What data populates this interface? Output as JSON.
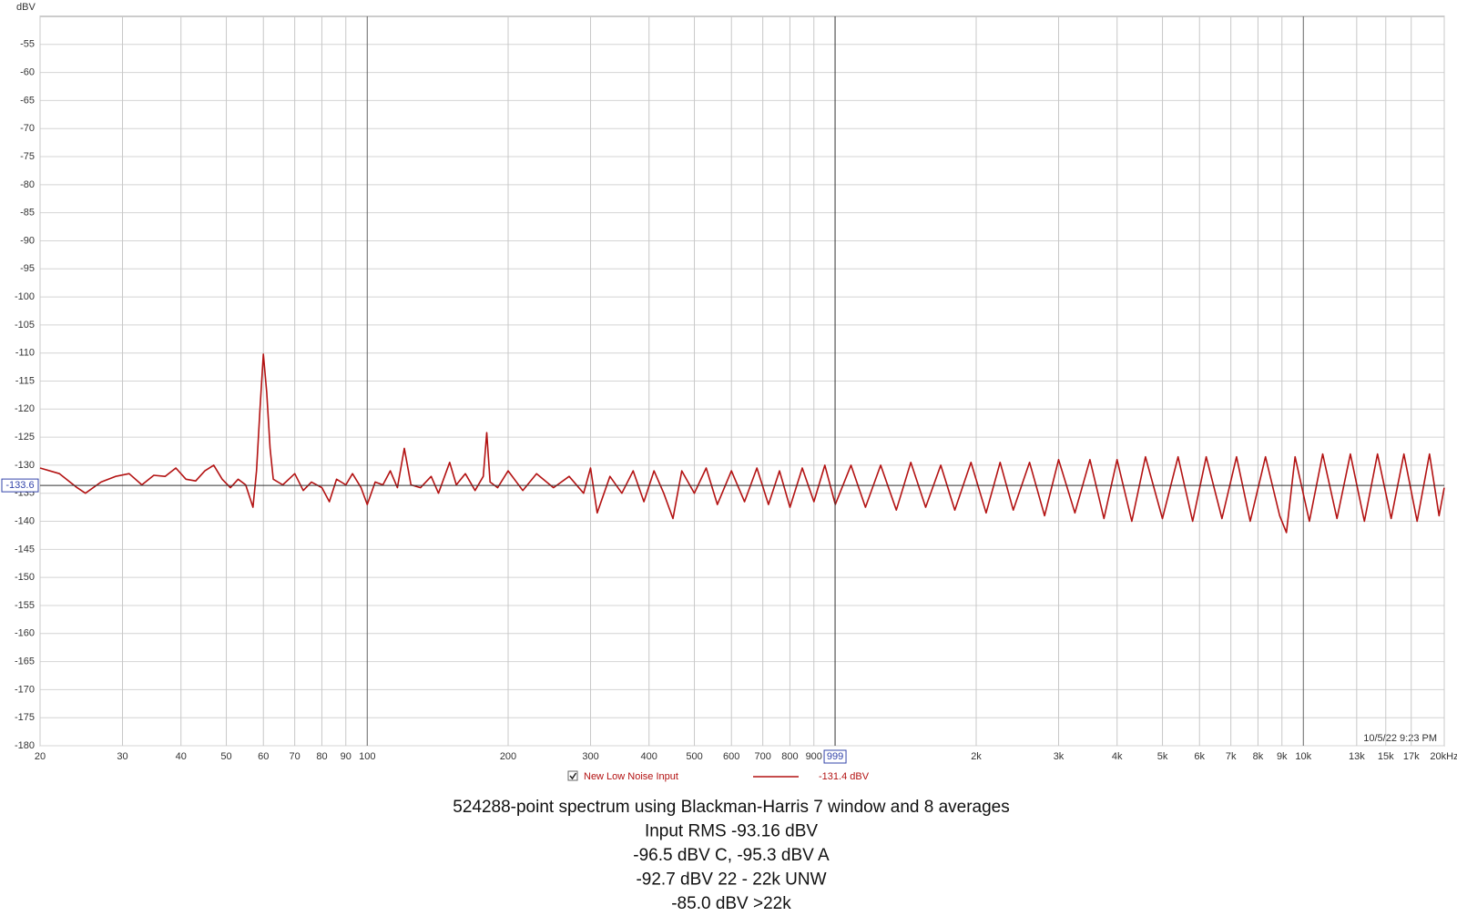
{
  "chart_data": {
    "type": "line",
    "y_label": "dBV",
    "xlim": [
      20,
      20000
    ],
    "ylim": [
      -180,
      -50
    ],
    "log_x": true,
    "grid": true,
    "yticks": [
      -55,
      -60,
      -65,
      -70,
      -75,
      -80,
      -85,
      -90,
      -95,
      -100,
      -105,
      -110,
      -115,
      -120,
      -125,
      -130,
      -135,
      -140,
      -145,
      -150,
      -155,
      -160,
      -165,
      -170,
      -175,
      -180
    ],
    "xticks": [
      20,
      30,
      40,
      50,
      60,
      70,
      80,
      90,
      100,
      200,
      300,
      400,
      500,
      600,
      700,
      800,
      900,
      {
        "value": 2000,
        "label": "2k"
      },
      {
        "value": 3000,
        "label": "3k"
      },
      {
        "value": 4000,
        "label": "4k"
      },
      {
        "value": 5000,
        "label": "5k"
      },
      {
        "value": 6000,
        "label": "6k"
      },
      {
        "value": 7000,
        "label": "7k"
      },
      {
        "value": 8000,
        "label": "8k"
      },
      {
        "value": 9000,
        "label": "9k"
      },
      {
        "value": 10000,
        "label": "10k"
      },
      {
        "value": 13000,
        "label": "13k"
      },
      {
        "value": 15000,
        "label": "15k"
      },
      {
        "value": 17000,
        "label": "17k"
      },
      {
        "value": 20000,
        "label": "20kHz"
      }
    ],
    "cursor": {
      "x": 999,
      "y": -133.6
    },
    "timestamp": "10/5/22 9:23 PM",
    "series": [
      {
        "name": "New Low Noise Input",
        "color": "#b31212",
        "legend_value": "-131.4 dBV",
        "x": [
          20,
          22,
          24,
          25,
          27,
          29,
          31,
          33,
          35,
          37,
          39,
          41,
          43,
          45,
          47,
          49,
          51,
          53,
          55,
          57,
          58,
          59,
          60,
          61,
          62,
          63,
          66,
          70,
          73,
          76,
          80,
          83,
          86,
          90,
          93,
          97,
          100,
          104,
          108,
          112,
          116,
          120,
          124,
          130,
          137,
          142,
          150,
          155,
          162,
          170,
          177,
          180,
          183,
          190,
          200,
          215,
          230,
          250,
          270,
          290,
          300,
          310,
          330,
          350,
          370,
          390,
          410,
          430,
          450,
          470,
          500,
          530,
          560,
          600,
          640,
          680,
          720,
          760,
          800,
          850,
          900,
          950,
          1000,
          1080,
          1160,
          1250,
          1350,
          1450,
          1560,
          1680,
          1800,
          1950,
          2100,
          2250,
          2400,
          2600,
          2800,
          3000,
          3250,
          3500,
          3750,
          4000,
          4300,
          4600,
          5000,
          5400,
          5800,
          6200,
          6700,
          7200,
          7700,
          8300,
          8900,
          9200,
          9600,
          10300,
          11000,
          11800,
          12600,
          13500,
          14400,
          15400,
          16400,
          17500,
          18600,
          19500,
          20000
        ],
        "values": [
          -130.5,
          -131.5,
          -134,
          -135,
          -133,
          -132,
          -131.5,
          -133.5,
          -131.8,
          -132,
          -130.5,
          -132.5,
          -132.8,
          -131,
          -130,
          -132.5,
          -134,
          -132.5,
          -133.5,
          -137.5,
          -131,
          -120,
          -110.2,
          -117,
          -127,
          -132.5,
          -133.5,
          -131.5,
          -134.5,
          -133,
          -134,
          -136.5,
          -132.5,
          -133.5,
          -131.5,
          -134,
          -137,
          -133,
          -133.5,
          -131,
          -134,
          -127,
          -133.5,
          -134,
          -132,
          -135,
          -129.5,
          -133.5,
          -131.5,
          -134.5,
          -132,
          -124.2,
          -133,
          -134,
          -131,
          -134.5,
          -131.5,
          -134,
          -132,
          -135,
          -130.5,
          -138.5,
          -132,
          -135,
          -131,
          -136.5,
          -131,
          -135,
          -139.5,
          -131,
          -135,
          -130.5,
          -137,
          -131,
          -136.5,
          -130.5,
          -137,
          -131,
          -137.5,
          -130.5,
          -136.5,
          -130,
          -137,
          -130,
          -137.5,
          -130,
          -138,
          -129.5,
          -137.5,
          -130,
          -138,
          -129.5,
          -138.5,
          -129.5,
          -138,
          -129.5,
          -139,
          -129,
          -138.5,
          -129,
          -139.5,
          -129,
          -140,
          -128.5,
          -139.5,
          -128.5,
          -140,
          -128.5,
          -139.5,
          -128.5,
          -140,
          -128.5,
          -139,
          -142,
          -128.5,
          -140,
          -128,
          -139.5,
          -128,
          -140,
          -128,
          -139.5,
          -128,
          -140,
          -128,
          -139,
          -134
        ]
      }
    ],
    "notes": [
      "524288-point spectrum using Blackman-Harris 7 window and 8 averages",
      "Input RMS -93.16 dBV",
      "-96.5 dBV C, -95.3 dBV A",
      "-92.7 dBV 22 - 22k UNW",
      "-85.0 dBV >22k"
    ]
  }
}
